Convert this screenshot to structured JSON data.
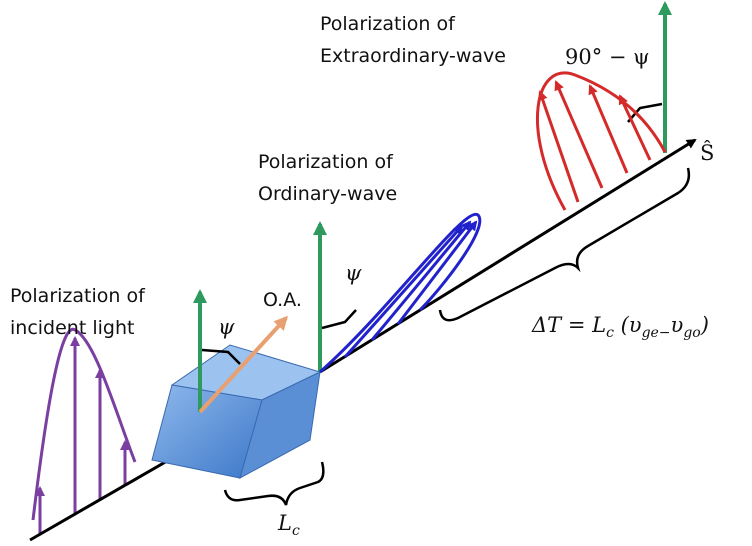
{
  "labels": {
    "incident": [
      "Polarization of",
      "incident light"
    ],
    "ordinary": [
      "Polarization of",
      "Ordinary-wave"
    ],
    "extraordinary": [
      "Polarization of",
      "Extraordinary-wave"
    ],
    "optic_axis": "O.A.",
    "psi_incident": "ψ",
    "psi_ordinary": "ψ",
    "psi_extraordinary": "90° − ψ",
    "direction": "Ŝ",
    "crystal_length": {
      "symbol": "L",
      "sub": "c"
    },
    "delay": {
      "lhs": "ΔT = L",
      "sub1": "c",
      "mid": " (υ",
      "sub2": "ge−",
      "mid2": "υ",
      "sub3": "go",
      "end": ")"
    }
  }
}
